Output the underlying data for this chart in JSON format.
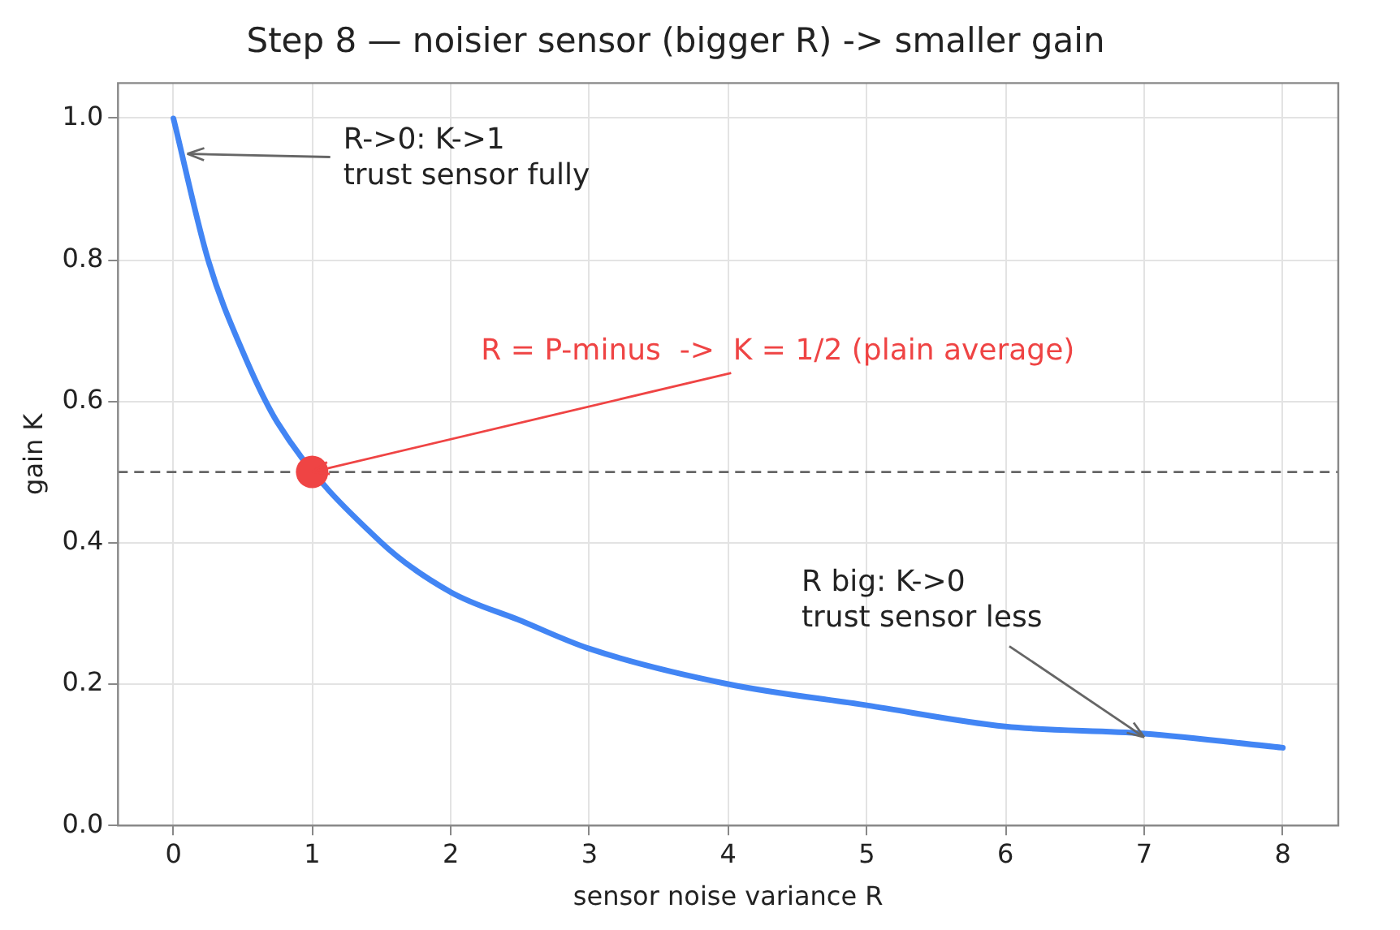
{
  "chart_data": {
    "type": "line",
    "title": "Step 8 — noisier sensor (bigger R) -> smaller gain",
    "xlabel": "sensor noise variance R",
    "ylabel": "gain K",
    "series": [
      {
        "color": "#4285f4",
        "marker": "none",
        "x": [
          0,
          0.25,
          0.5,
          0.75,
          1.5,
          2,
          2.5,
          3,
          4,
          5,
          6,
          7,
          8
        ],
        "values": [
          1,
          0.8,
          0.67,
          0.57,
          0.4,
          0.33,
          0.29,
          0.25,
          0.2,
          0.17,
          0.14,
          0.13,
          0.11
        ]
      },
      {
        "type": "scatter",
        "color": "#ef4444",
        "marker": "circle",
        "x": [
          1
        ],
        "values": [
          0.5
        ]
      }
    ],
    "xlim": [
      -0.4,
      8.4
    ],
    "xticks": [
      0,
      1,
      2,
      3,
      4,
      5,
      6,
      7,
      8
    ],
    "ylim": [
      0,
      1.05
    ],
    "yticks": [
      {
        "value": 0,
        "label": "0.0"
      },
      {
        "value": 0.2,
        "label": "0.2"
      },
      {
        "value": 0.4,
        "label": "0.4"
      },
      {
        "value": 0.6,
        "label": "0.6"
      },
      {
        "value": 0.8,
        "label": "0.8"
      },
      {
        "value": 1,
        "label": "1.0"
      }
    ],
    "ref_lines": [
      {
        "axis": "y",
        "value": 0.5,
        "label": null,
        "color": "#666666",
        "line_style": "dashed"
      }
    ],
    "annotations": [
      {
        "text": "R->0: K->1\ntrust sensor fully",
        "x": 0.1,
        "y": 0.95
      },
      {
        "text": "R = P-minus  ->  K = 1/2 (plain average)",
        "x": 1,
        "y": 0.5
      },
      {
        "text": "R big: K->0\ntrust sensor less",
        "x": 7,
        "y": 0.125
      }
    ],
    "grid": true,
    "legend": false
  }
}
